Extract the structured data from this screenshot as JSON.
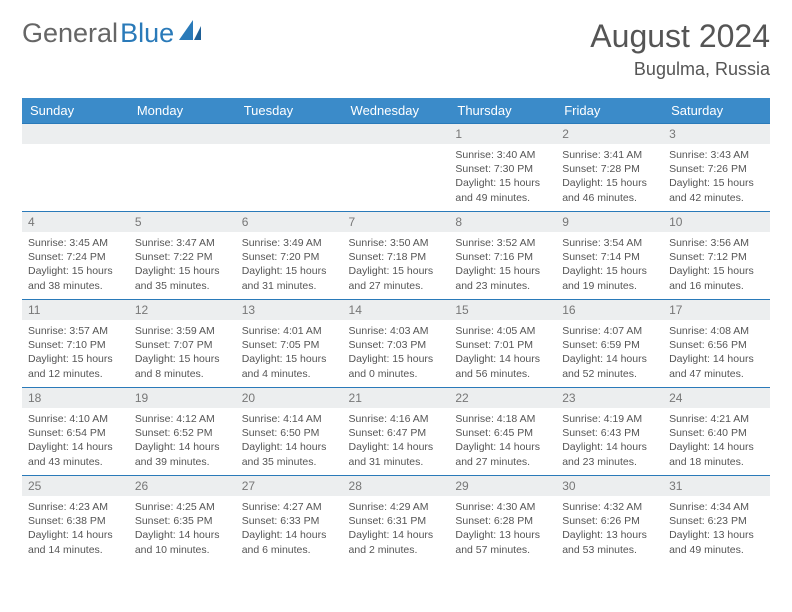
{
  "brand": {
    "part1": "General",
    "part2": "Blue"
  },
  "title": "August 2024",
  "location": "Bugulma, Russia",
  "colors": {
    "header_bg": "#3b8bc9",
    "header_text": "#ffffff",
    "border": "#2a7ab9",
    "daynum_bg": "#eceeef",
    "daynum_text": "#777777",
    "body_text": "#555555",
    "logo_gray": "#666666",
    "logo_blue": "#2a7ab9",
    "page_bg": "#ffffff"
  },
  "typography": {
    "title_fontsize": 32,
    "location_fontsize": 18,
    "logo_fontsize": 27,
    "dayhead_fontsize": 13,
    "daynum_fontsize": 12,
    "body_fontsize": 10.5
  },
  "day_labels": [
    "Sunday",
    "Monday",
    "Tuesday",
    "Wednesday",
    "Thursday",
    "Friday",
    "Saturday"
  ],
  "weeks": [
    [
      {
        "n": "",
        "l1": "",
        "l2": "",
        "l3": "",
        "l4": ""
      },
      {
        "n": "",
        "l1": "",
        "l2": "",
        "l3": "",
        "l4": ""
      },
      {
        "n": "",
        "l1": "",
        "l2": "",
        "l3": "",
        "l4": ""
      },
      {
        "n": "",
        "l1": "",
        "l2": "",
        "l3": "",
        "l4": ""
      },
      {
        "n": "1",
        "l1": "Sunrise: 3:40 AM",
        "l2": "Sunset: 7:30 PM",
        "l3": "Daylight: 15 hours",
        "l4": "and 49 minutes."
      },
      {
        "n": "2",
        "l1": "Sunrise: 3:41 AM",
        "l2": "Sunset: 7:28 PM",
        "l3": "Daylight: 15 hours",
        "l4": "and 46 minutes."
      },
      {
        "n": "3",
        "l1": "Sunrise: 3:43 AM",
        "l2": "Sunset: 7:26 PM",
        "l3": "Daylight: 15 hours",
        "l4": "and 42 minutes."
      }
    ],
    [
      {
        "n": "4",
        "l1": "Sunrise: 3:45 AM",
        "l2": "Sunset: 7:24 PM",
        "l3": "Daylight: 15 hours",
        "l4": "and 38 minutes."
      },
      {
        "n": "5",
        "l1": "Sunrise: 3:47 AM",
        "l2": "Sunset: 7:22 PM",
        "l3": "Daylight: 15 hours",
        "l4": "and 35 minutes."
      },
      {
        "n": "6",
        "l1": "Sunrise: 3:49 AM",
        "l2": "Sunset: 7:20 PM",
        "l3": "Daylight: 15 hours",
        "l4": "and 31 minutes."
      },
      {
        "n": "7",
        "l1": "Sunrise: 3:50 AM",
        "l2": "Sunset: 7:18 PM",
        "l3": "Daylight: 15 hours",
        "l4": "and 27 minutes."
      },
      {
        "n": "8",
        "l1": "Sunrise: 3:52 AM",
        "l2": "Sunset: 7:16 PM",
        "l3": "Daylight: 15 hours",
        "l4": "and 23 minutes."
      },
      {
        "n": "9",
        "l1": "Sunrise: 3:54 AM",
        "l2": "Sunset: 7:14 PM",
        "l3": "Daylight: 15 hours",
        "l4": "and 19 minutes."
      },
      {
        "n": "10",
        "l1": "Sunrise: 3:56 AM",
        "l2": "Sunset: 7:12 PM",
        "l3": "Daylight: 15 hours",
        "l4": "and 16 minutes."
      }
    ],
    [
      {
        "n": "11",
        "l1": "Sunrise: 3:57 AM",
        "l2": "Sunset: 7:10 PM",
        "l3": "Daylight: 15 hours",
        "l4": "and 12 minutes."
      },
      {
        "n": "12",
        "l1": "Sunrise: 3:59 AM",
        "l2": "Sunset: 7:07 PM",
        "l3": "Daylight: 15 hours",
        "l4": "and 8 minutes."
      },
      {
        "n": "13",
        "l1": "Sunrise: 4:01 AM",
        "l2": "Sunset: 7:05 PM",
        "l3": "Daylight: 15 hours",
        "l4": "and 4 minutes."
      },
      {
        "n": "14",
        "l1": "Sunrise: 4:03 AM",
        "l2": "Sunset: 7:03 PM",
        "l3": "Daylight: 15 hours",
        "l4": "and 0 minutes."
      },
      {
        "n": "15",
        "l1": "Sunrise: 4:05 AM",
        "l2": "Sunset: 7:01 PM",
        "l3": "Daylight: 14 hours",
        "l4": "and 56 minutes."
      },
      {
        "n": "16",
        "l1": "Sunrise: 4:07 AM",
        "l2": "Sunset: 6:59 PM",
        "l3": "Daylight: 14 hours",
        "l4": "and 52 minutes."
      },
      {
        "n": "17",
        "l1": "Sunrise: 4:08 AM",
        "l2": "Sunset: 6:56 PM",
        "l3": "Daylight: 14 hours",
        "l4": "and 47 minutes."
      }
    ],
    [
      {
        "n": "18",
        "l1": "Sunrise: 4:10 AM",
        "l2": "Sunset: 6:54 PM",
        "l3": "Daylight: 14 hours",
        "l4": "and 43 minutes."
      },
      {
        "n": "19",
        "l1": "Sunrise: 4:12 AM",
        "l2": "Sunset: 6:52 PM",
        "l3": "Daylight: 14 hours",
        "l4": "and 39 minutes."
      },
      {
        "n": "20",
        "l1": "Sunrise: 4:14 AM",
        "l2": "Sunset: 6:50 PM",
        "l3": "Daylight: 14 hours",
        "l4": "and 35 minutes."
      },
      {
        "n": "21",
        "l1": "Sunrise: 4:16 AM",
        "l2": "Sunset: 6:47 PM",
        "l3": "Daylight: 14 hours",
        "l4": "and 31 minutes."
      },
      {
        "n": "22",
        "l1": "Sunrise: 4:18 AM",
        "l2": "Sunset: 6:45 PM",
        "l3": "Daylight: 14 hours",
        "l4": "and 27 minutes."
      },
      {
        "n": "23",
        "l1": "Sunrise: 4:19 AM",
        "l2": "Sunset: 6:43 PM",
        "l3": "Daylight: 14 hours",
        "l4": "and 23 minutes."
      },
      {
        "n": "24",
        "l1": "Sunrise: 4:21 AM",
        "l2": "Sunset: 6:40 PM",
        "l3": "Daylight: 14 hours",
        "l4": "and 18 minutes."
      }
    ],
    [
      {
        "n": "25",
        "l1": "Sunrise: 4:23 AM",
        "l2": "Sunset: 6:38 PM",
        "l3": "Daylight: 14 hours",
        "l4": "and 14 minutes."
      },
      {
        "n": "26",
        "l1": "Sunrise: 4:25 AM",
        "l2": "Sunset: 6:35 PM",
        "l3": "Daylight: 14 hours",
        "l4": "and 10 minutes."
      },
      {
        "n": "27",
        "l1": "Sunrise: 4:27 AM",
        "l2": "Sunset: 6:33 PM",
        "l3": "Daylight: 14 hours",
        "l4": "and 6 minutes."
      },
      {
        "n": "28",
        "l1": "Sunrise: 4:29 AM",
        "l2": "Sunset: 6:31 PM",
        "l3": "Daylight: 14 hours",
        "l4": "and 2 minutes."
      },
      {
        "n": "29",
        "l1": "Sunrise: 4:30 AM",
        "l2": "Sunset: 6:28 PM",
        "l3": "Daylight: 13 hours",
        "l4": "and 57 minutes."
      },
      {
        "n": "30",
        "l1": "Sunrise: 4:32 AM",
        "l2": "Sunset: 6:26 PM",
        "l3": "Daylight: 13 hours",
        "l4": "and 53 minutes."
      },
      {
        "n": "31",
        "l1": "Sunrise: 4:34 AM",
        "l2": "Sunset: 6:23 PM",
        "l3": "Daylight: 13 hours",
        "l4": "and 49 minutes."
      }
    ]
  ]
}
